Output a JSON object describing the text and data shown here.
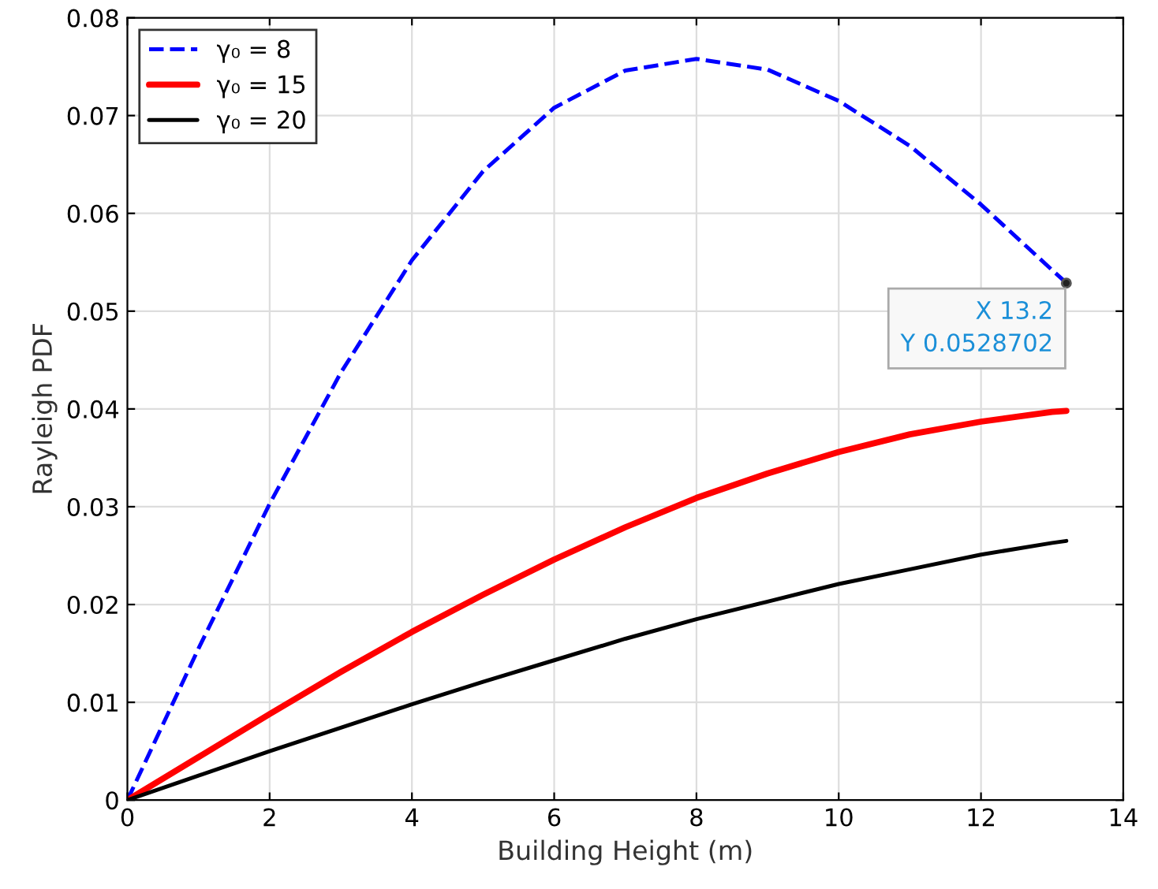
{
  "chart_data": {
    "type": "line",
    "xlabel": "Building Height (m)",
    "ylabel": "Rayleigh PDF",
    "x": [
      0,
      1,
      2,
      3,
      4,
      5,
      6,
      7,
      8,
      9,
      10,
      11,
      12,
      13,
      13.2
    ],
    "series": [
      {
        "name": "γ₀ = 8",
        "color": "#0000ff",
        "line_style": "dashed",
        "values": [
          0,
          0.0155,
          0.0303,
          0.0437,
          0.0552,
          0.0643,
          0.0708,
          0.0746,
          0.0758,
          0.0747,
          0.0715,
          0.0669,
          0.0609,
          0.0542,
          0.0529
        ]
      },
      {
        "name": "γ₀ = 15",
        "color": "#ff0000",
        "line_style": "solid",
        "values": [
          0,
          0.0044,
          0.0088,
          0.0131,
          0.0172,
          0.021,
          0.0246,
          0.0279,
          0.0309,
          0.0334,
          0.0356,
          0.0374,
          0.0387,
          0.0397,
          0.0398
        ]
      },
      {
        "name": "γ₀ = 20",
        "color": "#000000",
        "line_style": "solid",
        "values": [
          0,
          0.0025,
          0.005,
          0.0074,
          0.0098,
          0.0121,
          0.0143,
          0.0165,
          0.0185,
          0.0203,
          0.0221,
          0.0236,
          0.0251,
          0.0263,
          0.0265
        ]
      }
    ],
    "xlim": [
      0,
      14
    ],
    "xticks": [
      0,
      2,
      4,
      6,
      8,
      10,
      12,
      14
    ],
    "ylim": [
      0,
      0.08
    ],
    "yticks": [
      0,
      0.01,
      0.02,
      0.03,
      0.04,
      0.05,
      0.06,
      0.07,
      0.08
    ],
    "grid": true,
    "legend": "top left",
    "marker": "none",
    "annotations": [
      {
        "text": "X 13.2\nY 0.0528702",
        "x": 13.2,
        "y": 0.0528702
      }
    ]
  }
}
